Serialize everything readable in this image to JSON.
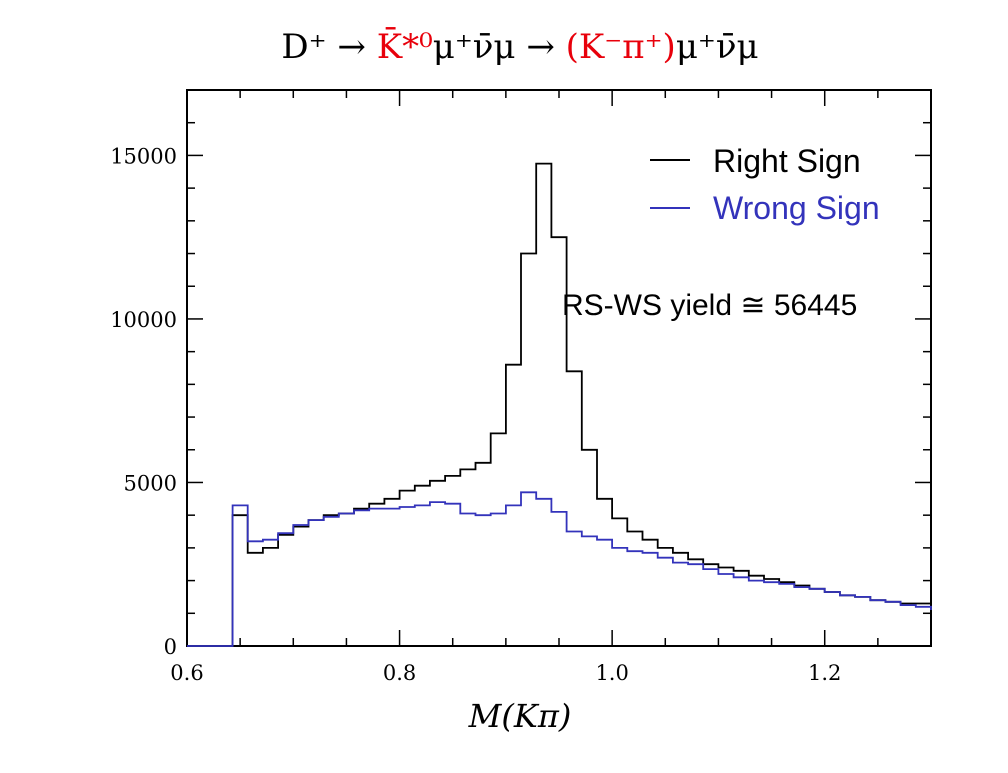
{
  "chart_data": {
    "type": "line",
    "title": "D⁺ → K̄*⁰μ⁺ν̄μ → (K⁻π⁺)μ⁺ν̄μ",
    "title_parts": [
      {
        "text": "D⁺ → ",
        "color": "#000000"
      },
      {
        "text": "K̄*⁰",
        "color": "#e8000b"
      },
      {
        "text": "μ⁺ν̄μ → ",
        "color": "#000000"
      },
      {
        "text": "(K⁻π⁺)",
        "color": "#e8000b"
      },
      {
        "text": "μ⁺ν̄μ",
        "color": "#000000"
      }
    ],
    "xlabel": "M(Kπ)",
    "ylabel": "",
    "xlim": [
      0.6,
      1.3
    ],
    "ylim": [
      0,
      17000
    ],
    "x_ticks": [
      "0.6",
      "0.8",
      "1.0",
      "1.2"
    ],
    "x_tick_values": [
      0.6,
      0.8,
      1.0,
      1.2
    ],
    "y_ticks": [
      "0",
      "5000",
      "10000",
      "15000"
    ],
    "y_tick_values": [
      0,
      5000,
      10000,
      15000
    ],
    "x_minor_step": 0.05,
    "y_minor_step": 1000,
    "grid": false,
    "legend_position": "top-right",
    "bin_edges_start": 0.6,
    "bin_width": 0.0142857,
    "series": [
      {
        "name": "Right Sign",
        "color": "#000000",
        "values": [
          0,
          0,
          0,
          4000,
          2850,
          3000,
          3400,
          3650,
          3850,
          4000,
          4050,
          4200,
          4350,
          4500,
          4750,
          4900,
          5050,
          5200,
          5400,
          5600,
          6500,
          8600,
          12000,
          14750,
          12500,
          8400,
          6000,
          4500,
          3900,
          3500,
          3250,
          3000,
          2850,
          2650,
          2500,
          2400,
          2300,
          2150,
          2050,
          1950,
          1850,
          1750,
          1650,
          1550,
          1500,
          1400,
          1350,
          1300,
          1300,
          1250
        ]
      },
      {
        "name": "Wrong Sign",
        "color": "#3333bb",
        "values": [
          0,
          0,
          0,
          4300,
          3200,
          3250,
          3450,
          3700,
          3850,
          3950,
          4050,
          4150,
          4200,
          4200,
          4250,
          4300,
          4400,
          4350,
          4050,
          4000,
          4050,
          4300,
          4700,
          4500,
          4100,
          3500,
          3350,
          3250,
          3000,
          2900,
          2850,
          2700,
          2550,
          2500,
          2350,
          2200,
          2100,
          2000,
          1950,
          1900,
          1800,
          1750,
          1650,
          1550,
          1500,
          1400,
          1350,
          1250,
          1200,
          1100
        ]
      }
    ],
    "annotation": "RS-WS yield ≅ 56445"
  }
}
